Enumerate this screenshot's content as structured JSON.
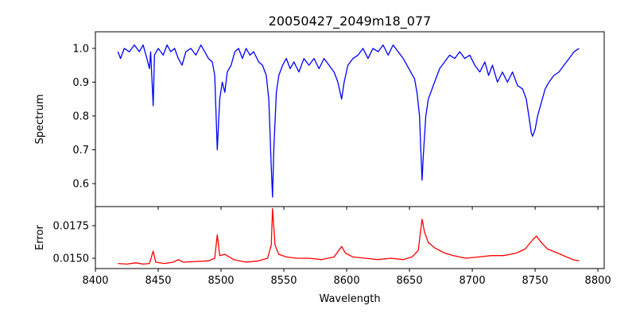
{
  "chart_data": [
    {
      "type": "line",
      "title": "20050427_2049m18_077",
      "xlabel": "",
      "ylabel": "Spectrum",
      "xlim": [
        8400,
        8805
      ],
      "ylim": [
        0.532,
        1.049
      ],
      "xticks": [
        8400,
        8450,
        8500,
        8550,
        8600,
        8650,
        8700,
        8750,
        8800
      ],
      "yticks": [
        0.6,
        0.7,
        0.8,
        0.9,
        1.0
      ],
      "ytick_labels": [
        "0.6",
        "0.7",
        "0.8",
        "0.9",
        "1.0"
      ],
      "color": "#0000ff",
      "series": [
        {
          "name": "Spectrum",
          "points": [
            [
              8418,
              0.99
            ],
            [
              8420,
              0.97
            ],
            [
              8423,
              1.0
            ],
            [
              8427,
              0.99
            ],
            [
              8431,
              1.01
            ],
            [
              8435,
              0.99
            ],
            [
              8438,
              1.01
            ],
            [
              8441,
              0.97
            ],
            [
              8443,
              0.94
            ],
            [
              8444,
              0.99
            ],
            [
              8446,
              0.83
            ],
            [
              8447,
              0.98
            ],
            [
              8450,
              1.0
            ],
            [
              8454,
              0.98
            ],
            [
              8457,
              1.01
            ],
            [
              8460,
              0.99
            ],
            [
              8463,
              1.0
            ],
            [
              8466,
              0.97
            ],
            [
              8469,
              0.95
            ],
            [
              8472,
              0.99
            ],
            [
              8476,
              1.0
            ],
            [
              8480,
              0.98
            ],
            [
              8484,
              1.01
            ],
            [
              8487,
              0.99
            ],
            [
              8490,
              0.97
            ],
            [
              8493,
              0.96
            ],
            [
              8495,
              0.92
            ],
            [
              8497,
              0.7
            ],
            [
              8499,
              0.85
            ],
            [
              8501,
              0.9
            ],
            [
              8503,
              0.87
            ],
            [
              8505,
              0.93
            ],
            [
              8508,
              0.95
            ],
            [
              8511,
              0.99
            ],
            [
              8514,
              1.0
            ],
            [
              8517,
              0.97
            ],
            [
              8520,
              1.0
            ],
            [
              8523,
              0.98
            ],
            [
              8526,
              0.99
            ],
            [
              8530,
              0.96
            ],
            [
              8533,
              0.95
            ],
            [
              8536,
              0.92
            ],
            [
              8538,
              0.85
            ],
            [
              8540,
              0.65
            ],
            [
              8541,
              0.56
            ],
            [
              8542,
              0.7
            ],
            [
              8544,
              0.87
            ],
            [
              8546,
              0.92
            ],
            [
              8549,
              0.95
            ],
            [
              8552,
              0.97
            ],
            [
              8555,
              0.94
            ],
            [
              8558,
              0.96
            ],
            [
              8562,
              0.93
            ],
            [
              8566,
              0.97
            ],
            [
              8570,
              0.95
            ],
            [
              8574,
              0.97
            ],
            [
              8578,
              0.94
            ],
            [
              8582,
              0.97
            ],
            [
              8586,
              0.95
            ],
            [
              8590,
              0.93
            ],
            [
              8593,
              0.9
            ],
            [
              8596,
              0.85
            ],
            [
              8598,
              0.9
            ],
            [
              8601,
              0.95
            ],
            [
              8605,
              0.97
            ],
            [
              8609,
              0.98
            ],
            [
              8613,
              1.0
            ],
            [
              8617,
              0.97
            ],
            [
              8621,
              1.0
            ],
            [
              8625,
              0.99
            ],
            [
              8629,
              1.01
            ],
            [
              8633,
              0.98
            ],
            [
              8637,
              1.01
            ],
            [
              8641,
              0.99
            ],
            [
              8645,
              0.97
            ],
            [
              8648,
              0.95
            ],
            [
              8651,
              0.93
            ],
            [
              8654,
              0.91
            ],
            [
              8656,
              0.87
            ],
            [
              8658,
              0.8
            ],
            [
              8659,
              0.7
            ],
            [
              8660,
              0.61
            ],
            [
              8661,
              0.68
            ],
            [
              8663,
              0.8
            ],
            [
              8665,
              0.85
            ],
            [
              8668,
              0.88
            ],
            [
              8671,
              0.91
            ],
            [
              8674,
              0.94
            ],
            [
              8678,
              0.96
            ],
            [
              8682,
              0.98
            ],
            [
              8686,
              0.97
            ],
            [
              8690,
              0.99
            ],
            [
              8694,
              0.97
            ],
            [
              8698,
              0.98
            ],
            [
              8702,
              0.95
            ],
            [
              8706,
              0.93
            ],
            [
              8710,
              0.96
            ],
            [
              8713,
              0.92
            ],
            [
              8716,
              0.95
            ],
            [
              8720,
              0.9
            ],
            [
              8724,
              0.93
            ],
            [
              8728,
              0.9
            ],
            [
              8732,
              0.93
            ],
            [
              8736,
              0.89
            ],
            [
              8740,
              0.88
            ],
            [
              8743,
              0.85
            ],
            [
              8745,
              0.8
            ],
            [
              8747,
              0.75
            ],
            [
              8748,
              0.74
            ],
            [
              8750,
              0.76
            ],
            [
              8752,
              0.8
            ],
            [
              8755,
              0.84
            ],
            [
              8758,
              0.88
            ],
            [
              8761,
              0.9
            ],
            [
              8765,
              0.92
            ],
            [
              8769,
              0.93
            ],
            [
              8773,
              0.95
            ],
            [
              8777,
              0.97
            ],
            [
              8781,
              0.99
            ],
            [
              8785,
              1.0
            ]
          ]
        }
      ]
    },
    {
      "type": "line",
      "title": "",
      "xlabel": "Wavelength",
      "ylabel": "Error",
      "xlim": [
        8400,
        8805
      ],
      "ylim": [
        0.01421,
        0.01896
      ],
      "xticks": [
        8400,
        8450,
        8500,
        8550,
        8600,
        8650,
        8700,
        8750,
        8800
      ],
      "xtick_labels": [
        "8400",
        "8450",
        "8500",
        "8550",
        "8600",
        "8650",
        "8700",
        "8750",
        "8800"
      ],
      "yticks": [
        0.015,
        0.0175
      ],
      "ytick_labels": [
        "0.0150",
        "0.0175"
      ],
      "color": "#ff0000",
      "series": [
        {
          "name": "Error",
          "points": [
            [
              8418,
              0.0146
            ],
            [
              8425,
              0.01455
            ],
            [
              8432,
              0.01465
            ],
            [
              8438,
              0.01455
            ],
            [
              8443,
              0.0146
            ],
            [
              8446,
              0.01555
            ],
            [
              8448,
              0.0147
            ],
            [
              8455,
              0.0146
            ],
            [
              8462,
              0.0147
            ],
            [
              8466,
              0.0149
            ],
            [
              8470,
              0.0147
            ],
            [
              8480,
              0.01475
            ],
            [
              8490,
              0.0148
            ],
            [
              8495,
              0.015
            ],
            [
              8497,
              0.0168
            ],
            [
              8499,
              0.0152
            ],
            [
              8503,
              0.0153
            ],
            [
              8510,
              0.0149
            ],
            [
              8520,
              0.0147
            ],
            [
              8530,
              0.0148
            ],
            [
              8537,
              0.015
            ],
            [
              8540,
              0.016
            ],
            [
              8541,
              0.0188
            ],
            [
              8543,
              0.016
            ],
            [
              8546,
              0.0153
            ],
            [
              8552,
              0.0151
            ],
            [
              8560,
              0.015
            ],
            [
              8570,
              0.015
            ],
            [
              8580,
              0.0149
            ],
            [
              8590,
              0.0151
            ],
            [
              8596,
              0.0159
            ],
            [
              8599,
              0.0154
            ],
            [
              8605,
              0.0151
            ],
            [
              8615,
              0.015
            ],
            [
              8625,
              0.0149
            ],
            [
              8635,
              0.015
            ],
            [
              8645,
              0.0149
            ],
            [
              8652,
              0.0151
            ],
            [
              8657,
              0.0156
            ],
            [
              8660,
              0.018
            ],
            [
              8662,
              0.017
            ],
            [
              8665,
              0.0162
            ],
            [
              8670,
              0.0158
            ],
            [
              8678,
              0.0154
            ],
            [
              8685,
              0.0152
            ],
            [
              8695,
              0.015
            ],
            [
              8705,
              0.0151
            ],
            [
              8715,
              0.0152
            ],
            [
              8725,
              0.0152
            ],
            [
              8735,
              0.0154
            ],
            [
              8742,
              0.0157
            ],
            [
              8748,
              0.0164
            ],
            [
              8751,
              0.0167
            ],
            [
              8755,
              0.0162
            ],
            [
              8760,
              0.0157
            ],
            [
              8768,
              0.0154
            ],
            [
              8775,
              0.0151
            ],
            [
              8780,
              0.0149
            ],
            [
              8785,
              0.0148
            ]
          ]
        }
      ]
    }
  ]
}
